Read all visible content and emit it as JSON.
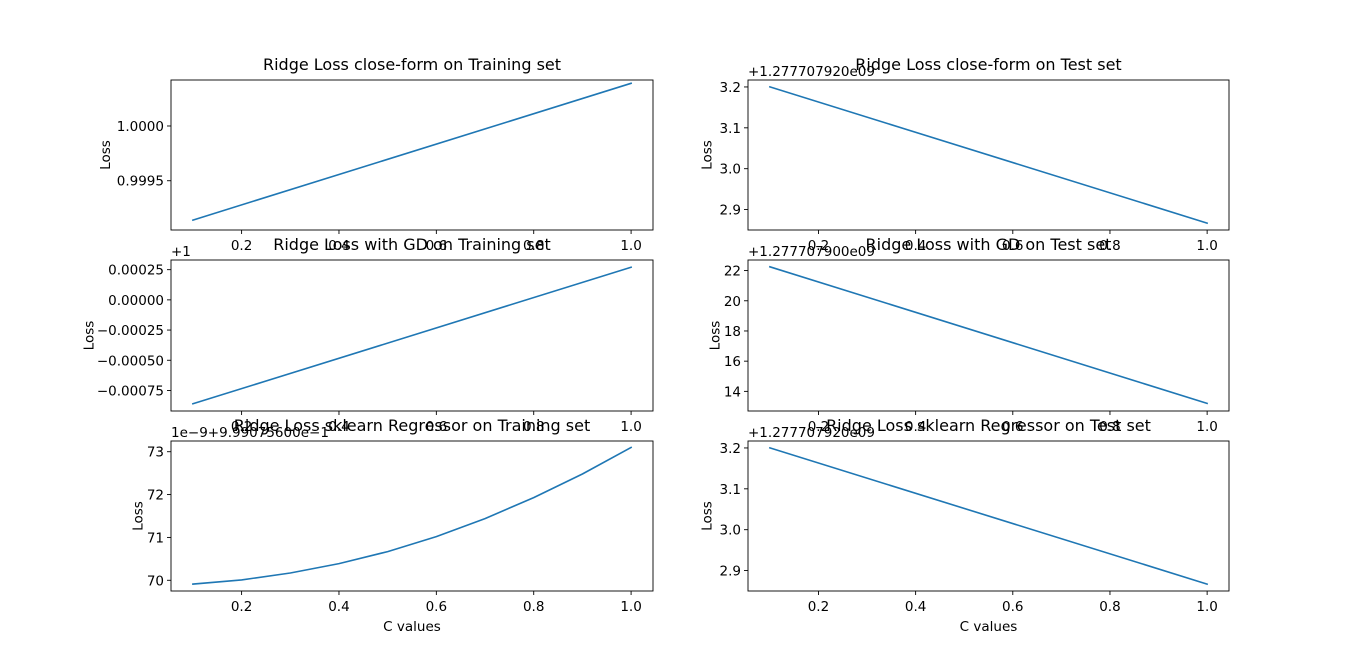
{
  "chart_data": [
    {
      "type": "line",
      "title": "Ridge Loss close-form on Training set",
      "xlabel": "",
      "ylabel": "Loss",
      "offset_text": "",
      "color": "#1f77b4",
      "xlim": [
        0.055,
        1.045
      ],
      "ylim": [
        0.99905,
        1.00042
      ],
      "xticks": [
        0.2,
        0.4,
        0.6,
        0.8,
        1.0
      ],
      "xtick_labels": [
        "0.2",
        "0.4",
        "0.6",
        "0.8",
        "1.0"
      ],
      "yticks": [
        0.9995,
        1.0
      ],
      "ytick_labels": [
        "0.9995",
        "1.0000"
      ],
      "x": [
        0.1,
        1.0
      ],
      "y": [
        0.99914,
        1.00039
      ]
    },
    {
      "type": "line",
      "title": "Ridge Loss close-form on Test set",
      "xlabel": "",
      "ylabel": "Loss",
      "offset_text": "+1.277707920e09",
      "color": "#1f77b4",
      "xlim": [
        0.055,
        1.045
      ],
      "ylim": [
        2.85,
        3.217
      ],
      "xticks": [
        0.2,
        0.4,
        0.6,
        0.8,
        1.0
      ],
      "xtick_labels": [
        "0.2",
        "0.4",
        "0.6",
        "0.8",
        "1.0"
      ],
      "yticks": [
        2.9,
        3.0,
        3.1,
        3.2
      ],
      "ytick_labels": [
        "2.9",
        "3.0",
        "3.1",
        "3.2"
      ],
      "x": [
        0.1,
        1.0
      ],
      "y": [
        3.2,
        2.867
      ]
    },
    {
      "type": "line",
      "title": "Ridge Loss with GD on Training set",
      "xlabel": "",
      "ylabel": "Loss",
      "offset_text": "+1",
      "color": "#1f77b4",
      "xlim": [
        0.055,
        1.045
      ],
      "ylim": [
        -0.00092,
        0.00033
      ],
      "xticks": [
        0.2,
        0.4,
        0.6,
        0.8,
        1.0
      ],
      "xtick_labels": [
        "0.2",
        "0.4",
        "0.6",
        "0.8",
        "1.0"
      ],
      "yticks": [
        -0.00075,
        -0.0005,
        -0.00025,
        0.0,
        0.00025
      ],
      "ytick_labels": [
        "−0.00075",
        "−0.00050",
        "−0.00025",
        "0.00000",
        "0.00025"
      ],
      "x": [
        0.1,
        1.0
      ],
      "y": [
        -0.00086,
        0.00027
      ]
    },
    {
      "type": "line",
      "title": "Ridge Loss with GD on Test set",
      "xlabel": "",
      "ylabel": "Loss",
      "offset_text": "+1.277707900e09",
      "color": "#1f77b4",
      "xlim": [
        0.055,
        1.045
      ],
      "ylim": [
        12.7,
        22.7
      ],
      "xticks": [
        0.2,
        0.4,
        0.6,
        0.8,
        1.0
      ],
      "xtick_labels": [
        "0.2",
        "0.4",
        "0.6",
        "0.8",
        "1.0"
      ],
      "yticks": [
        14,
        16,
        18,
        20,
        22
      ],
      "ytick_labels": [
        "14",
        "16",
        "18",
        "20",
        "22"
      ],
      "x": [
        0.1,
        1.0
      ],
      "y": [
        22.25,
        13.2
      ]
    },
    {
      "type": "line",
      "title": "Ridge Loss sklearn Regressor on Training set",
      "xlabel": "C values",
      "ylabel": "Loss",
      "offset_text": "1e−9+9.99075600e−1",
      "color": "#1f77b4",
      "xlim": [
        0.055,
        1.045
      ],
      "ylim": [
        69.75,
        73.25
      ],
      "xticks": [
        0.2,
        0.4,
        0.6,
        0.8,
        1.0
      ],
      "xtick_labels": [
        "0.2",
        "0.4",
        "0.6",
        "0.8",
        "1.0"
      ],
      "yticks": [
        70,
        71,
        72,
        73
      ],
      "ytick_labels": [
        "70",
        "71",
        "72",
        "73"
      ],
      "x": [
        0.1,
        0.2,
        0.3,
        0.4,
        0.5,
        0.6,
        0.7,
        0.8,
        0.9,
        1.0
      ],
      "y": [
        69.91,
        70.01,
        70.17,
        70.39,
        70.67,
        71.02,
        71.44,
        71.93,
        72.48,
        73.1
      ]
    },
    {
      "type": "line",
      "title": "Ridge Loss sklearn Regressor on Test set",
      "xlabel": "C values",
      "ylabel": "Loss",
      "offset_text": "+1.277707920e09",
      "color": "#1f77b4",
      "xlim": [
        0.055,
        1.045
      ],
      "ylim": [
        2.85,
        3.217
      ],
      "xticks": [
        0.2,
        0.4,
        0.6,
        0.8,
        1.0
      ],
      "xtick_labels": [
        "0.2",
        "0.4",
        "0.6",
        "0.8",
        "1.0"
      ],
      "yticks": [
        2.9,
        3.0,
        3.1,
        3.2
      ],
      "ytick_labels": [
        "2.9",
        "3.0",
        "3.1",
        "3.2"
      ],
      "x": [
        0.1,
        1.0
      ],
      "y": [
        3.2,
        2.867
      ]
    }
  ]
}
